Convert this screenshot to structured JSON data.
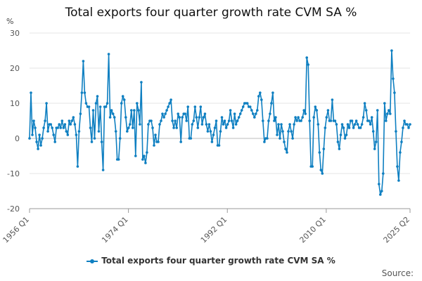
{
  "chart_data": {
    "type": "line",
    "title": "Total exports four quarter growth rate CVM SA %",
    "unit_label": "%",
    "ylim": [
      -20,
      30
    ],
    "y_ticks": [
      -20,
      -10,
      0,
      10,
      20,
      30
    ],
    "x_range": [
      "1956 Q1",
      "2025 Q2"
    ],
    "x_ticks": [
      "1956 Q1",
      "1974 Q1",
      "1992 Q1",
      "2010 Q1",
      "2025 Q2"
    ],
    "grid": true,
    "legend_position": "bottom",
    "series": [
      {
        "name": "Total exports four quarter growth rate CVM SA %",
        "color": "#0e7fc1",
        "x_start": "1956 Q1",
        "values": [
          0,
          13,
          1,
          5,
          3,
          -1,
          -3,
          1,
          -2,
          0,
          3,
          5,
          10,
          2,
          4,
          4,
          3,
          1,
          -1,
          3,
          3,
          4,
          3,
          5,
          3,
          4,
          2,
          1,
          5,
          4,
          5,
          6,
          4,
          1,
          -8,
          2,
          7,
          13,
          22,
          13,
          10,
          9,
          9,
          3,
          -1,
          8,
          0,
          10,
          12,
          2,
          9,
          -1,
          -9,
          9,
          9,
          10,
          24,
          6,
          8,
          7,
          6,
          2,
          -6,
          -6,
          0,
          10,
          12,
          11,
          6,
          2,
          3,
          4,
          8,
          3,
          8,
          -5,
          10,
          8,
          4,
          16,
          -6,
          -5,
          -7,
          -4,
          4,
          5,
          5,
          3,
          -2,
          1,
          -1,
          -1,
          4,
          5,
          7,
          6,
          7,
          8,
          9,
          10,
          11,
          5,
          3,
          5,
          3,
          7,
          6,
          -1,
          6,
          7,
          7,
          5,
          9,
          0,
          0,
          4,
          5,
          9,
          6,
          3,
          6,
          9,
          4,
          6,
          7,
          4,
          2,
          4,
          2,
          -1,
          1,
          3,
          5,
          -2,
          -2,
          2,
          6,
          4,
          5,
          3,
          4,
          5,
          8,
          5,
          3,
          7,
          4,
          5,
          6,
          7,
          8,
          9,
          10,
          10,
          10,
          9,
          9,
          8,
          7,
          6,
          7,
          8,
          12,
          13,
          11,
          5,
          -1,
          0,
          0,
          5,
          7,
          10,
          13,
          5,
          6,
          1,
          4,
          0,
          4,
          2,
          -1,
          -3,
          -4,
          2,
          4,
          2,
          0,
          4,
          6,
          5,
          6,
          5,
          5,
          6,
          8,
          7,
          23,
          21,
          5,
          -8,
          -8,
          6,
          9,
          8,
          4,
          -4,
          -9,
          -10,
          -3,
          3,
          6,
          8,
          5,
          5,
          11,
          5,
          5,
          4,
          -1,
          -3,
          1,
          4,
          3,
          0,
          1,
          4,
          3,
          5,
          5,
          3,
          4,
          5,
          4,
          3,
          3,
          4,
          6,
          10,
          8,
          5,
          5,
          4,
          6,
          2,
          -3,
          -1,
          8,
          -13,
          -16,
          -15,
          -10,
          10,
          5,
          7,
          8,
          7,
          25,
          17,
          13,
          2,
          -8,
          -12,
          -4,
          -1,
          3,
          5,
          4,
          4,
          3,
          4
        ]
      }
    ],
    "source_label": "Source:"
  }
}
